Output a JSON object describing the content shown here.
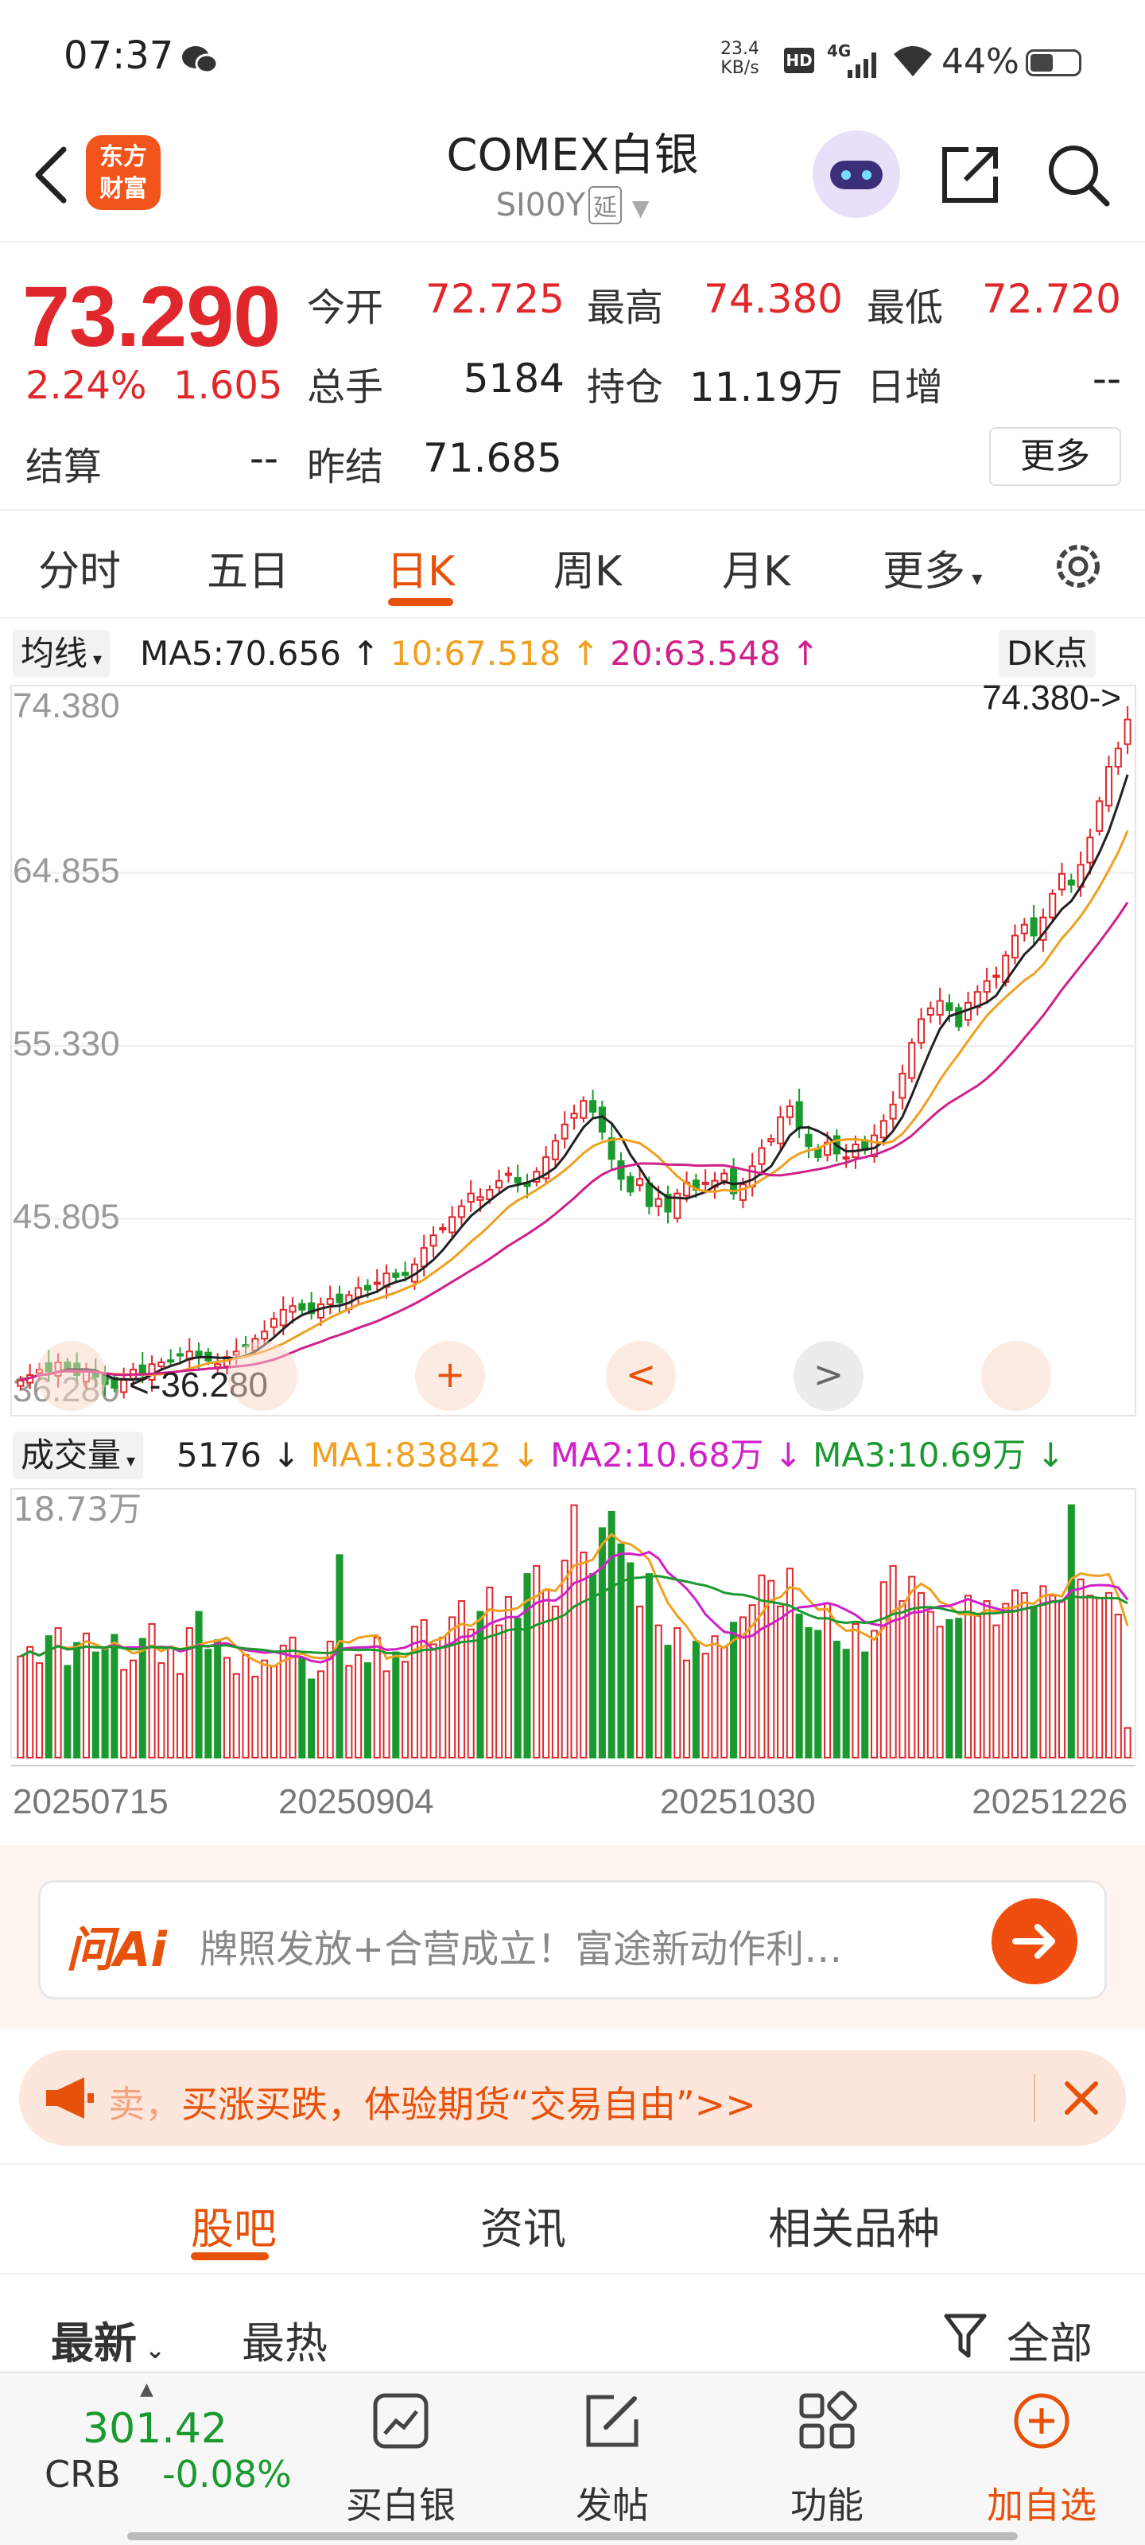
{
  "status_bar": {
    "time": "07:37",
    "net_speed_value": "23.4",
    "net_speed_unit": "KB/s",
    "hd": "HD",
    "network": "4G",
    "battery": "44%"
  },
  "header": {
    "logo_line1": "东方",
    "logo_line2": "财富",
    "title": "COMEX白银",
    "code": "SI00Y",
    "delay_tag": "延"
  },
  "quote": {
    "price": "73.290",
    "change_pct": "2.24%",
    "change": "1.605",
    "fields": {
      "open_label": "今开",
      "open": "72.725",
      "high_label": "最高",
      "high": "74.380",
      "low_label": "最低",
      "low": "72.720",
      "volume_label": "总手",
      "volume": "5184",
      "oi_label": "持仓",
      "oi": "11.19万",
      "daily_inc_label": "日增",
      "daily_inc": "--",
      "settle_label": "结算",
      "settle": "--",
      "prev_settle_label": "昨结",
      "prev_settle": "71.685"
    },
    "more": "更多"
  },
  "tabs": [
    "分时",
    "五日",
    "日K",
    "周K",
    "月K",
    "更多"
  ],
  "active_tab": "日K",
  "ma_bar": {
    "selector": "均线",
    "ma5": "MA5:70.656",
    "ma10": "10:67.518",
    "ma20": "20:63.548",
    "dk": "DK点"
  },
  "volume_bar": {
    "selector": "成交量",
    "vol": "5176",
    "ma1": "MA1:83842",
    "ma2": "MA2:10.68万",
    "ma3": "MA3:10.69万",
    "max_label": "18.73万"
  },
  "colors": {
    "up": "#e0272b",
    "down": "#1a9a2e",
    "ma5": "#222222",
    "ma10": "#f0a020",
    "ma20": "#d0208a",
    "accent": "#e8510a"
  },
  "chart_data": {
    "type": "candlestick",
    "y_ticks": [
      "74.380",
      "64.855",
      "55.330",
      "45.805",
      "36.280"
    ],
    "ylim": [
      36.28,
      74.38
    ],
    "max_annotation": "74.380->",
    "min_annotation": "<-36.280",
    "x_ticks": [
      "20250715",
      "20250904",
      "20251030",
      "20251226"
    ],
    "closes": [
      36.9,
      37.2,
      37.5,
      37.4,
      37.9,
      37.6,
      37.2,
      37.5,
      37.1,
      36.7,
      36.5,
      37.0,
      37.5,
      37.3,
      37.8,
      37.9,
      38.0,
      38.3,
      38.5,
      38.2,
      38.0,
      37.8,
      38.2,
      38.5,
      38.8,
      39.2,
      39.6,
      40.3,
      40.8,
      41.0,
      40.8,
      40.6,
      41.1,
      41.4,
      41.2,
      41.6,
      42.0,
      41.9,
      42.3,
      42.8,
      42.6,
      42.7,
      43.3,
      44.2,
      44.9,
      45.3,
      45.9,
      46.5,
      47.2,
      47.0,
      47.4,
      47.9,
      48.3,
      47.8,
      47.6,
      48.4,
      49.2,
      50.1,
      51.0,
      51.6,
      52.3,
      51.7,
      50.6,
      49.1,
      48.0,
      47.3,
      48.0,
      46.5,
      46.9,
      46.2,
      47.2,
      47.8,
      47.4,
      47.8,
      47.9,
      48.3,
      47.2,
      47.7,
      48.7,
      49.7,
      50.2,
      51.4,
      52.0,
      50.8,
      49.8,
      49.2,
      50.0,
      49.4,
      49.2,
      49.9,
      49.6,
      50.4,
      51.2,
      52.1,
      53.8,
      55.5,
      56.8,
      57.4,
      57.8,
      57.3,
      56.4,
      57.7,
      58.3,
      58.9,
      59.2,
      60.3,
      61.4,
      62.0,
      61.4,
      62.4,
      63.7,
      64.8,
      64.2,
      65.3,
      66.8,
      68.8,
      70.7,
      71.7,
      73.3
    ],
    "volumes": [
      7.5,
      8.2,
      7.0,
      9.0,
      9.6,
      6.8,
      8.5,
      9.2,
      7.8,
      8.0,
      9.1,
      6.5,
      7.2,
      8.8,
      9.9,
      7.0,
      8.2,
      6.2,
      9.6,
      10.8,
      8.0,
      8.7,
      7.4,
      6.2,
      7.6,
      6.0,
      7.2,
      6.8,
      8.3,
      8.9,
      7.4,
      5.8,
      6.4,
      8.6,
      15.0,
      6.8,
      7.6,
      7.0,
      8.9,
      6.4,
      7.8,
      7.1,
      9.7,
      10.2,
      8.4,
      8.9,
      10.4,
      11.6,
      9.5,
      10.8,
      12.6,
      9.8,
      11.9,
      10.3,
      13.6,
      14.2,
      12.4,
      11.2,
      14.6,
      18.7,
      15.2,
      13.6,
      17.0,
      18.2,
      15.8,
      14.4,
      11.2,
      13.6,
      9.8,
      8.3,
      9.6,
      7.2,
      8.6,
      7.7,
      9.0,
      8.2,
      10.0,
      10.4,
      11.3,
      13.5,
      13.1,
      11.2,
      14.0,
      10.6,
      9.6,
      9.4,
      11.4,
      8.6,
      8.0,
      9.9,
      7.8,
      9.4,
      13.0,
      14.2,
      11.6,
      13.4,
      12.2,
      10.8,
      9.7,
      10.2,
      10.3,
      12.0,
      10.5,
      11.6,
      9.8,
      11.4,
      12.4,
      12.2,
      11.2,
      12.7,
      12.0,
      11.6,
      18.7,
      13.2,
      12.0,
      11.8,
      12.2,
      10.6,
      2.2
    ]
  },
  "chart_controls": {
    "zoom_in": "+",
    "prev": "<",
    "next": ">"
  },
  "ai_search": {
    "logo": "问Ai",
    "placeholder": "牌照发放+合营成立！富途新动作利…"
  },
  "promo": {
    "text_faded": "卖，",
    "text": "买涨买跌，体验期货“交易自由”>>"
  },
  "sub_tabs": [
    "股吧",
    "资讯",
    "相关品种"
  ],
  "active_sub_tab": "股吧",
  "sort": {
    "latest": "最新",
    "hot": "最热",
    "filter": "全部"
  },
  "bottom_nav": {
    "crb_value": "301.42",
    "crb_name": "CRB",
    "crb_change": "-0.08%",
    "items": [
      "买白银",
      "发帖",
      "功能",
      "加自选"
    ]
  }
}
